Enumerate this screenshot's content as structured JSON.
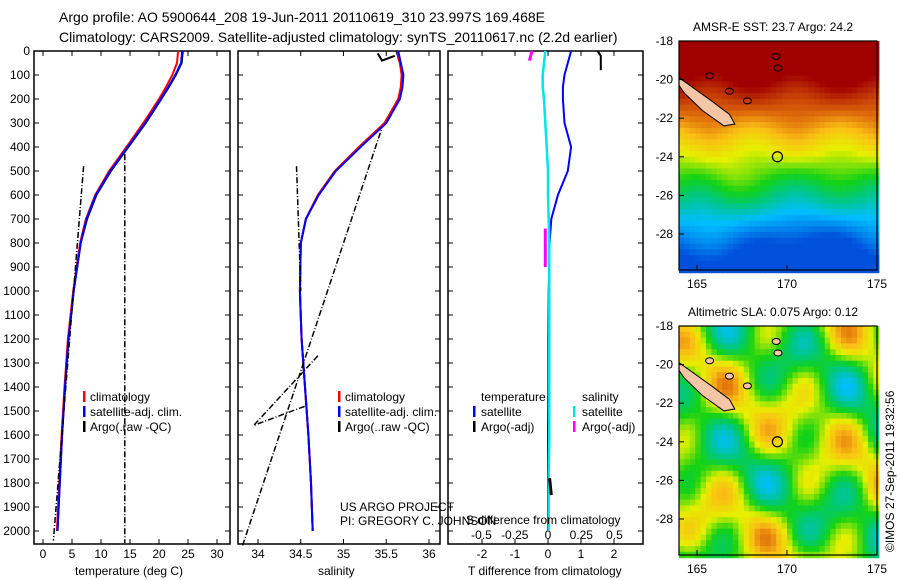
{
  "title": {
    "line1": "Argo profile: AO 5900644_208 19-Jun-2011 20110619_310 23.997S 169.468E",
    "line2": "Climatology: CARS2009. Satellite-adjusted climatology: synTS_20110617.nc (2.2d earlier)"
  },
  "colors": {
    "climatology": "#ff0000",
    "satellite": "#0000ff",
    "argo": "#000000",
    "sal_satellite": "#00e5ee",
    "sal_argo": "#ff00ff",
    "island": "#f5c6a5"
  },
  "chart_data": [
    {
      "type": "line",
      "name": "temperature",
      "xlabel": "temperature (deg C)",
      "xticks": [
        0,
        5,
        10,
        15,
        20,
        25,
        30
      ],
      "xlim": [
        -1.5,
        32
      ],
      "ylim": [
        0,
        2050
      ],
      "yticks": [
        0,
        100,
        200,
        300,
        400,
        500,
        600,
        700,
        800,
        900,
        1000,
        1100,
        1200,
        1300,
        1400,
        1500,
        1600,
        1700,
        1800,
        1900,
        2000
      ],
      "depth": [
        0,
        50,
        100,
        150,
        200,
        300,
        400,
        500,
        600,
        700,
        800,
        1000,
        1200,
        1400,
        1600,
        1800,
        2000
      ],
      "series": [
        {
          "name": "climatology",
          "values": [
            23.3,
            23.1,
            22.3,
            21.2,
            20.0,
            17.3,
            14.4,
            11.4,
            9.0,
            7.4,
            6.4,
            5.2,
            4.3,
            3.7,
            3.2,
            2.8,
            2.4
          ]
        },
        {
          "name": "satellite-adj. clim.",
          "values": [
            24.0,
            23.8,
            22.8,
            21.6,
            20.3,
            17.6,
            14.6,
            11.6,
            9.1,
            7.5,
            6.5,
            5.3,
            4.4,
            3.8,
            3.3,
            2.9,
            2.5
          ]
        },
        {
          "name": "Argo(.raw -QC)",
          "values": [
            24.1,
            23.9,
            22.9,
            21.7,
            20.4,
            17.7,
            14.7,
            11.7,
            9.2,
            7.6,
            6.5,
            5.3,
            4.4,
            3.8,
            3.3,
            2.9,
            2.5
          ]
        }
      ],
      "legend": [
        "climatology",
        "satellite-adj. clim.",
        "Argo(.raw -QC)"
      ]
    },
    {
      "type": "line",
      "name": "salinity",
      "xlabel": "salinity",
      "xticks": [
        34,
        34.5,
        35,
        35.5,
        36
      ],
      "xlim": [
        33.7,
        36.1
      ],
      "depth": [
        0,
        50,
        100,
        150,
        200,
        300,
        400,
        500,
        600,
        700,
        800,
        1000,
        1200,
        1400,
        1600,
        1800,
        2000
      ],
      "series": [
        {
          "name": "climatology",
          "values": [
            35.63,
            35.66,
            35.68,
            35.67,
            35.64,
            35.48,
            35.18,
            34.9,
            34.7,
            34.56,
            34.5,
            34.49,
            34.51,
            34.55,
            34.59,
            34.62,
            34.64
          ]
        },
        {
          "name": "satellite-adj. clim.",
          "values": [
            35.64,
            35.67,
            35.7,
            35.69,
            35.66,
            35.5,
            35.2,
            34.91,
            34.71,
            34.56,
            34.5,
            34.49,
            34.51,
            34.55,
            34.59,
            34.62,
            34.64
          ]
        },
        {
          "name": "Argo(..raw -QC)",
          "values": [
            35.62,
            35.66,
            35.69,
            35.68,
            35.65,
            35.49,
            35.19,
            34.9,
            34.7,
            34.56,
            34.5,
            34.49,
            34.51,
            34.55,
            34.59,
            34.62,
            34.64
          ]
        }
      ],
      "legend": [
        "climatology",
        "satellite-adj. clim.",
        "Argo(..raw -QC)"
      ]
    },
    {
      "type": "line",
      "name": "differences",
      "xlabel": "T difference from climatology",
      "xlabel_top": "S difference from climatology",
      "xticks_T": [
        -2,
        -1,
        0,
        1,
        2
      ],
      "xticks_S": [
        -0.5,
        -0.25,
        0,
        0.25,
        0.5
      ],
      "depth": [
        0,
        50,
        100,
        150,
        200,
        300,
        400,
        500,
        600,
        700,
        800,
        1000,
        1200,
        1400,
        1600,
        1800,
        2000
      ],
      "series": [
        {
          "name": "temperature satellite",
          "values": [
            0.7,
            0.6,
            0.5,
            0.45,
            0.45,
            0.5,
            0.7,
            0.6,
            0.3,
            0.1,
            0.05,
            0.02,
            0.01,
            0.01,
            0.0,
            0.0,
            0.0
          ]
        },
        {
          "name": "salinity satellite",
          "values": [
            -0.02,
            -0.03,
            -0.04,
            -0.04,
            -0.03,
            -0.02,
            -0.01,
            0.0,
            0.0,
            0.005,
            0.01,
            0.01,
            0.01,
            0.01,
            0.01,
            0.005,
            0.005
          ]
        }
      ],
      "legend_temperature": {
        "heading": "temperature",
        "items": [
          "satellite",
          "Argo(-adj)"
        ]
      },
      "legend_salinity": {
        "heading": "salinity",
        "items": [
          "satellite",
          "Argo(-adj)"
        ]
      }
    }
  ],
  "project": {
    "line1": "US ARGO PROJECT",
    "line2": "PI: GREGORY C. JOHNSON"
  },
  "maps": [
    {
      "title": "AMSR-E SST: 23.7 Argo: 24.2",
      "kind": "sst"
    },
    {
      "title": "Altimetric SLA: 0.075 Argo: 0.12",
      "kind": "sla"
    }
  ],
  "map_axes": {
    "lon_ticks": [
      165,
      170,
      175
    ],
    "lat_ticks": [
      -18,
      -20,
      -22,
      -24,
      -26,
      -28
    ],
    "float_lon": 169.468,
    "float_lat": -23.997
  },
  "credit": "©IMOS 27-Sep-2011 19:32:56"
}
